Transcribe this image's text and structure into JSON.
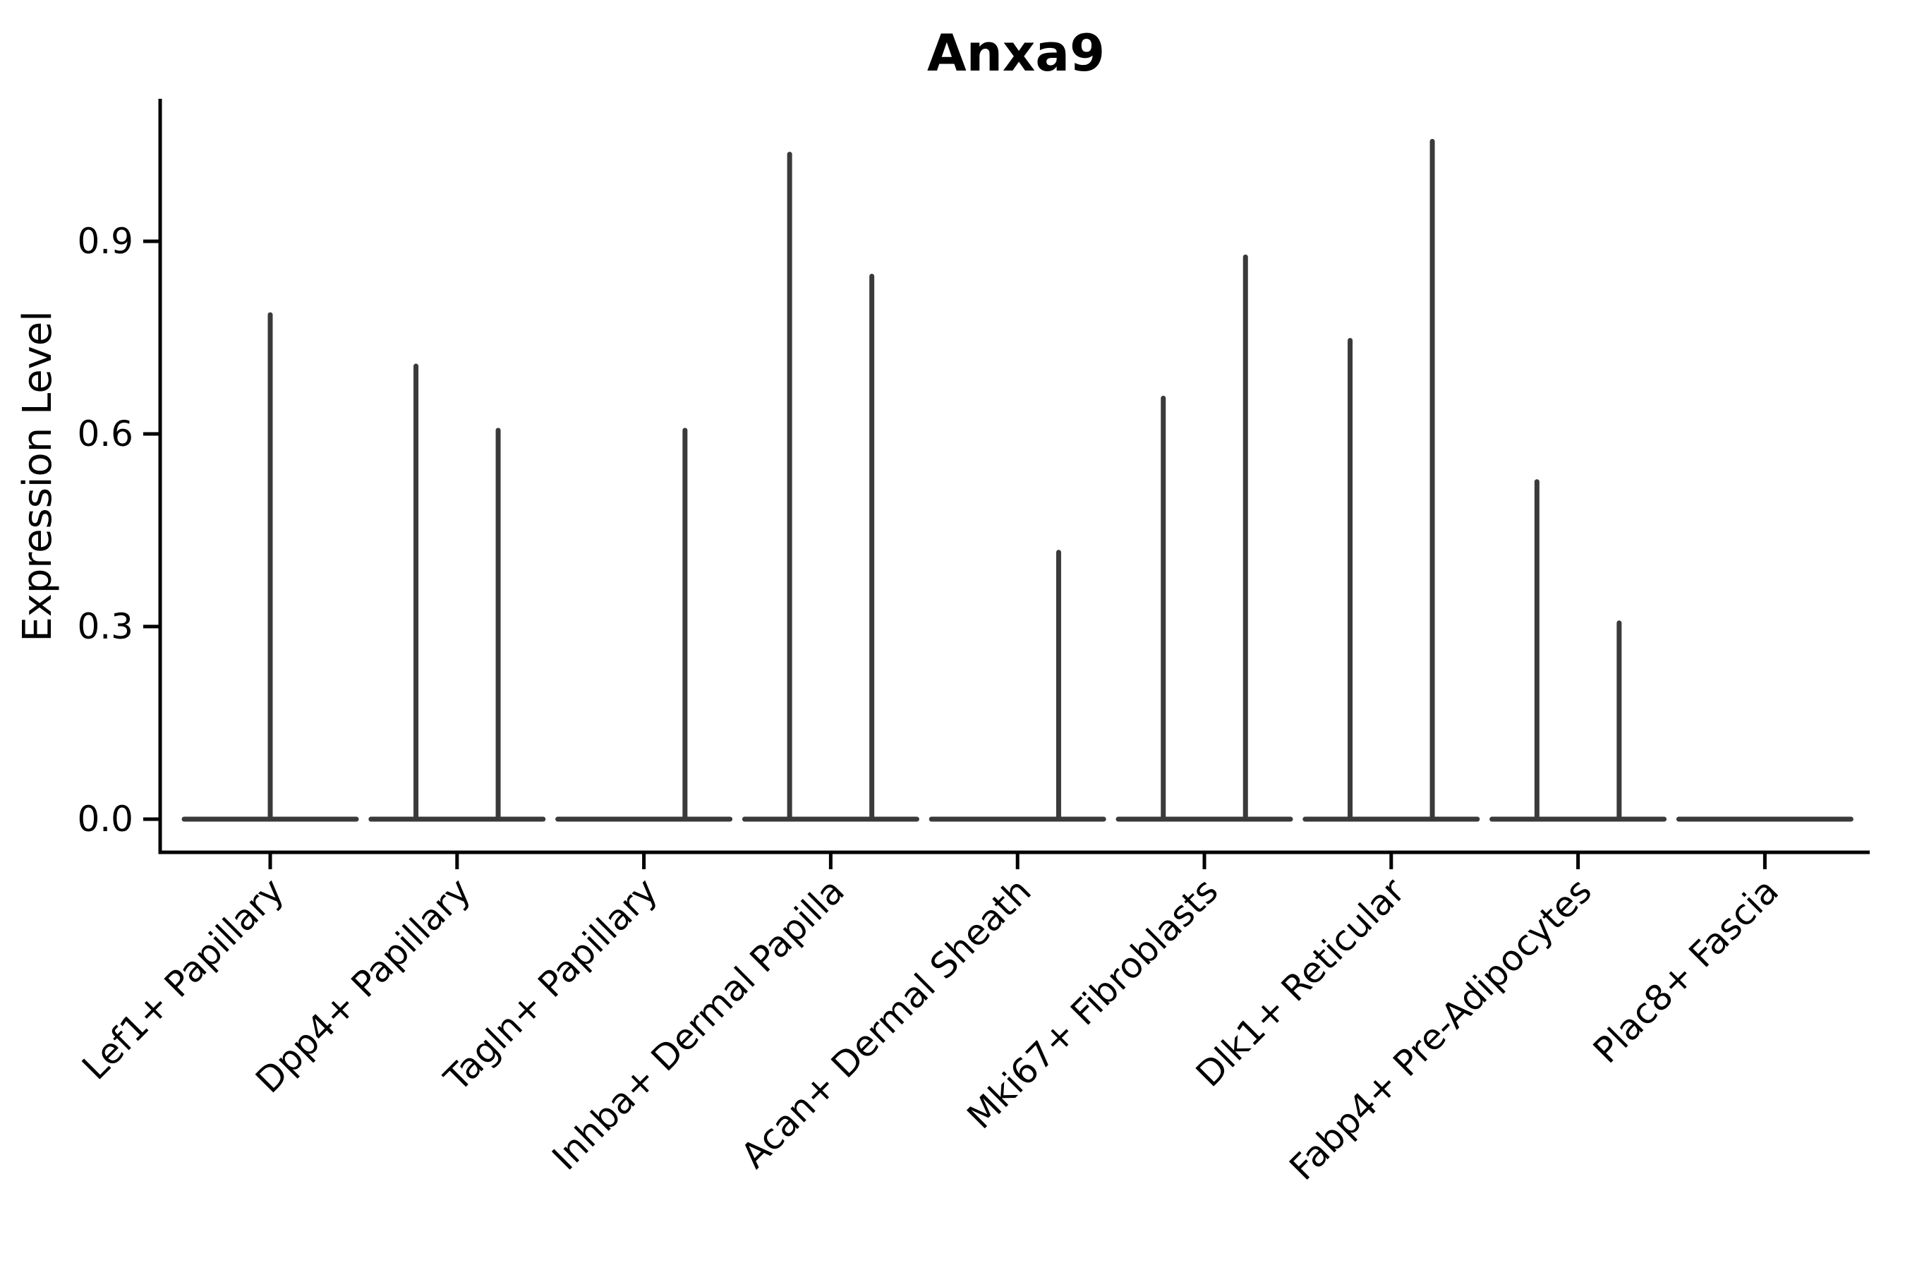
{
  "figure": {
    "background": "#ffffff"
  },
  "chart_data": {
    "type": "violin",
    "title": "Anxa9",
    "ylabel": "Expression Level",
    "xlabel": "",
    "yticks": [
      "0.0",
      "0.3",
      "0.6",
      "0.9"
    ],
    "ylim": [
      0,
      1.12
    ],
    "grid": false,
    "legend": null,
    "axis_color": "#000000",
    "violin_color": "#3a3a3a",
    "categories": [
      "Lef1+ Papillary",
      "Dpp4+ Papillary",
      "Tagln+ Papillary",
      "Inhba+ Dermal Papilla",
      "Acan+ Dermal Sheath",
      "Mki67+ Fibroblasts",
      "Dlk1+ Reticular",
      "Fabp4+ Pre-Adipocytes",
      "Plac8+ Fascia"
    ],
    "violins": [
      {
        "category": "Lef1+ Papillary",
        "max_expression": 0.79,
        "spikes": [
          {
            "offset": 0,
            "max": 0.79
          }
        ]
      },
      {
        "category": "Dpp4+ Papillary",
        "max_expression": 0.71,
        "spikes": [
          {
            "offset": -0.22,
            "max": 0.71
          },
          {
            "offset": 0.22,
            "max": 0.61
          }
        ]
      },
      {
        "category": "Tagln+ Papillary",
        "max_expression": 0.61,
        "spikes": [
          {
            "offset": 0.22,
            "max": 0.61
          }
        ]
      },
      {
        "category": "Inhba+ Dermal Papilla",
        "max_expression": 1.04,
        "spikes": [
          {
            "offset": -0.22,
            "max": 1.04
          },
          {
            "offset": 0.22,
            "max": 0.85
          }
        ]
      },
      {
        "category": "Acan+ Dermal Sheath",
        "max_expression": 0.42,
        "spikes": [
          {
            "offset": 0.22,
            "max": 0.42
          }
        ]
      },
      {
        "category": "Mki67+ Fibroblasts",
        "max_expression": 0.88,
        "spikes": [
          {
            "offset": -0.22,
            "max": 0.66
          },
          {
            "offset": 0.22,
            "max": 0.88
          }
        ]
      },
      {
        "category": "Dlk1+ Reticular",
        "max_expression": 1.06,
        "spikes": [
          {
            "offset": -0.22,
            "max": 0.75
          },
          {
            "offset": 0.22,
            "max": 1.06
          }
        ]
      },
      {
        "category": "Fabp4+ Pre-Adipocytes",
        "max_expression": 0.53,
        "spikes": [
          {
            "offset": -0.22,
            "max": 0.53
          },
          {
            "offset": 0.22,
            "max": 0.31
          }
        ]
      },
      {
        "category": "Plac8+ Fascia",
        "max_expression": 0.0,
        "spikes": []
      }
    ]
  }
}
